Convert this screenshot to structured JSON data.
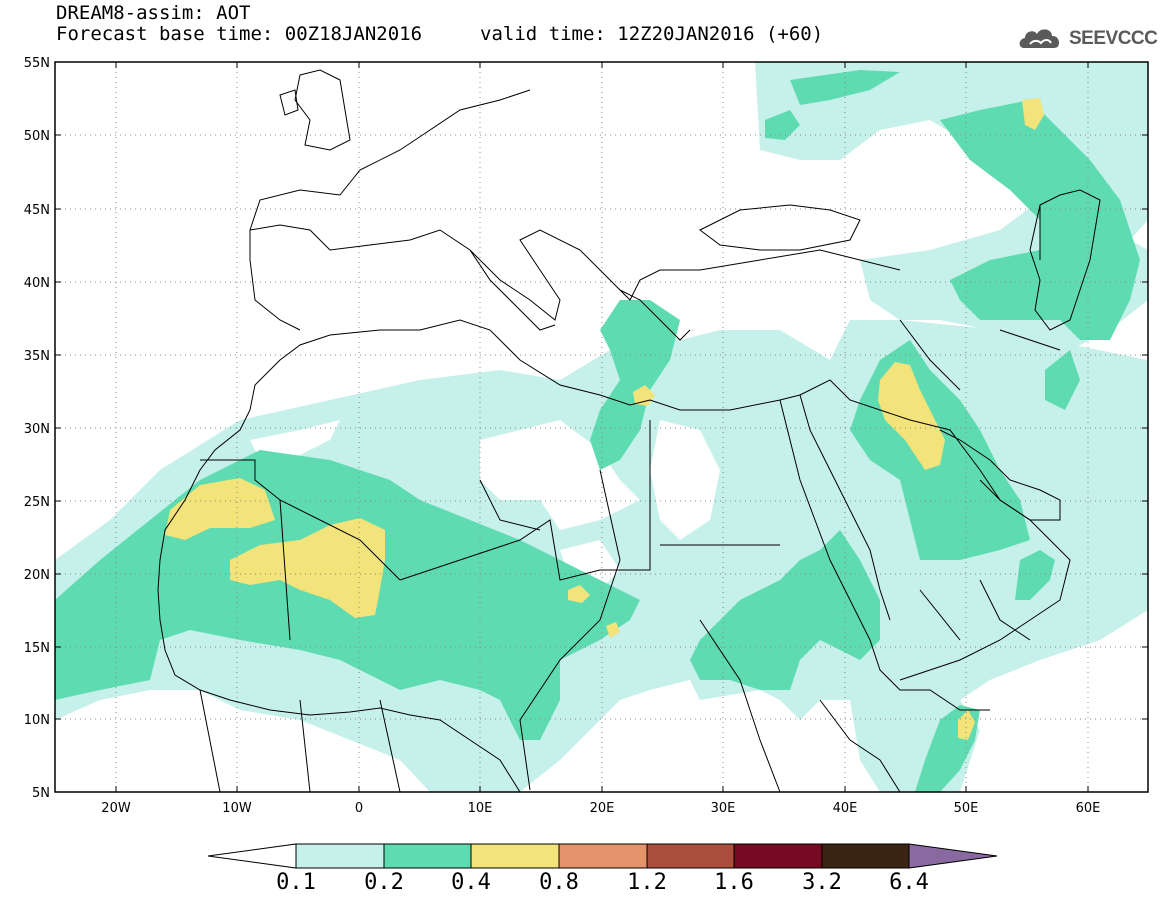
{
  "title": "DREAM8-assim: AOT",
  "forecast_line": "Forecast base time: 00Z18JAN2016",
  "valid_line": "valid time: 12Z20JAN2016 (+60)",
  "logo": {
    "text": "SEEVCCC",
    "icon": "cloud-logo-icon"
  },
  "lat_labels": [
    "55N",
    "50N",
    "45N",
    "40N",
    "35N",
    "30N",
    "25N",
    "20N",
    "15N",
    "10N",
    "5N"
  ],
  "lon_labels": [
    "20W",
    "10W",
    "0",
    "10E",
    "20E",
    "30E",
    "40E",
    "50E",
    "60E"
  ],
  "colorbar": {
    "levels": [
      "0.1",
      "0.2",
      "0.4",
      "0.8",
      "1.2",
      "1.6",
      "3.2",
      "6.4"
    ],
    "colors": [
      "#c6f0ea",
      "#5fdbb2",
      "#f2e37a",
      "#e5936a",
      "#ab4e3c",
      "#760a23",
      "#3b2411",
      "#8a69a0"
    ],
    "under_color": "#ffffff"
  },
  "legend": {
    "0_1_0_2": "#c6f0ea",
    "0_2_0_4": "#5fdbb2",
    "0_4_0_8": "#f2e37a"
  }
}
